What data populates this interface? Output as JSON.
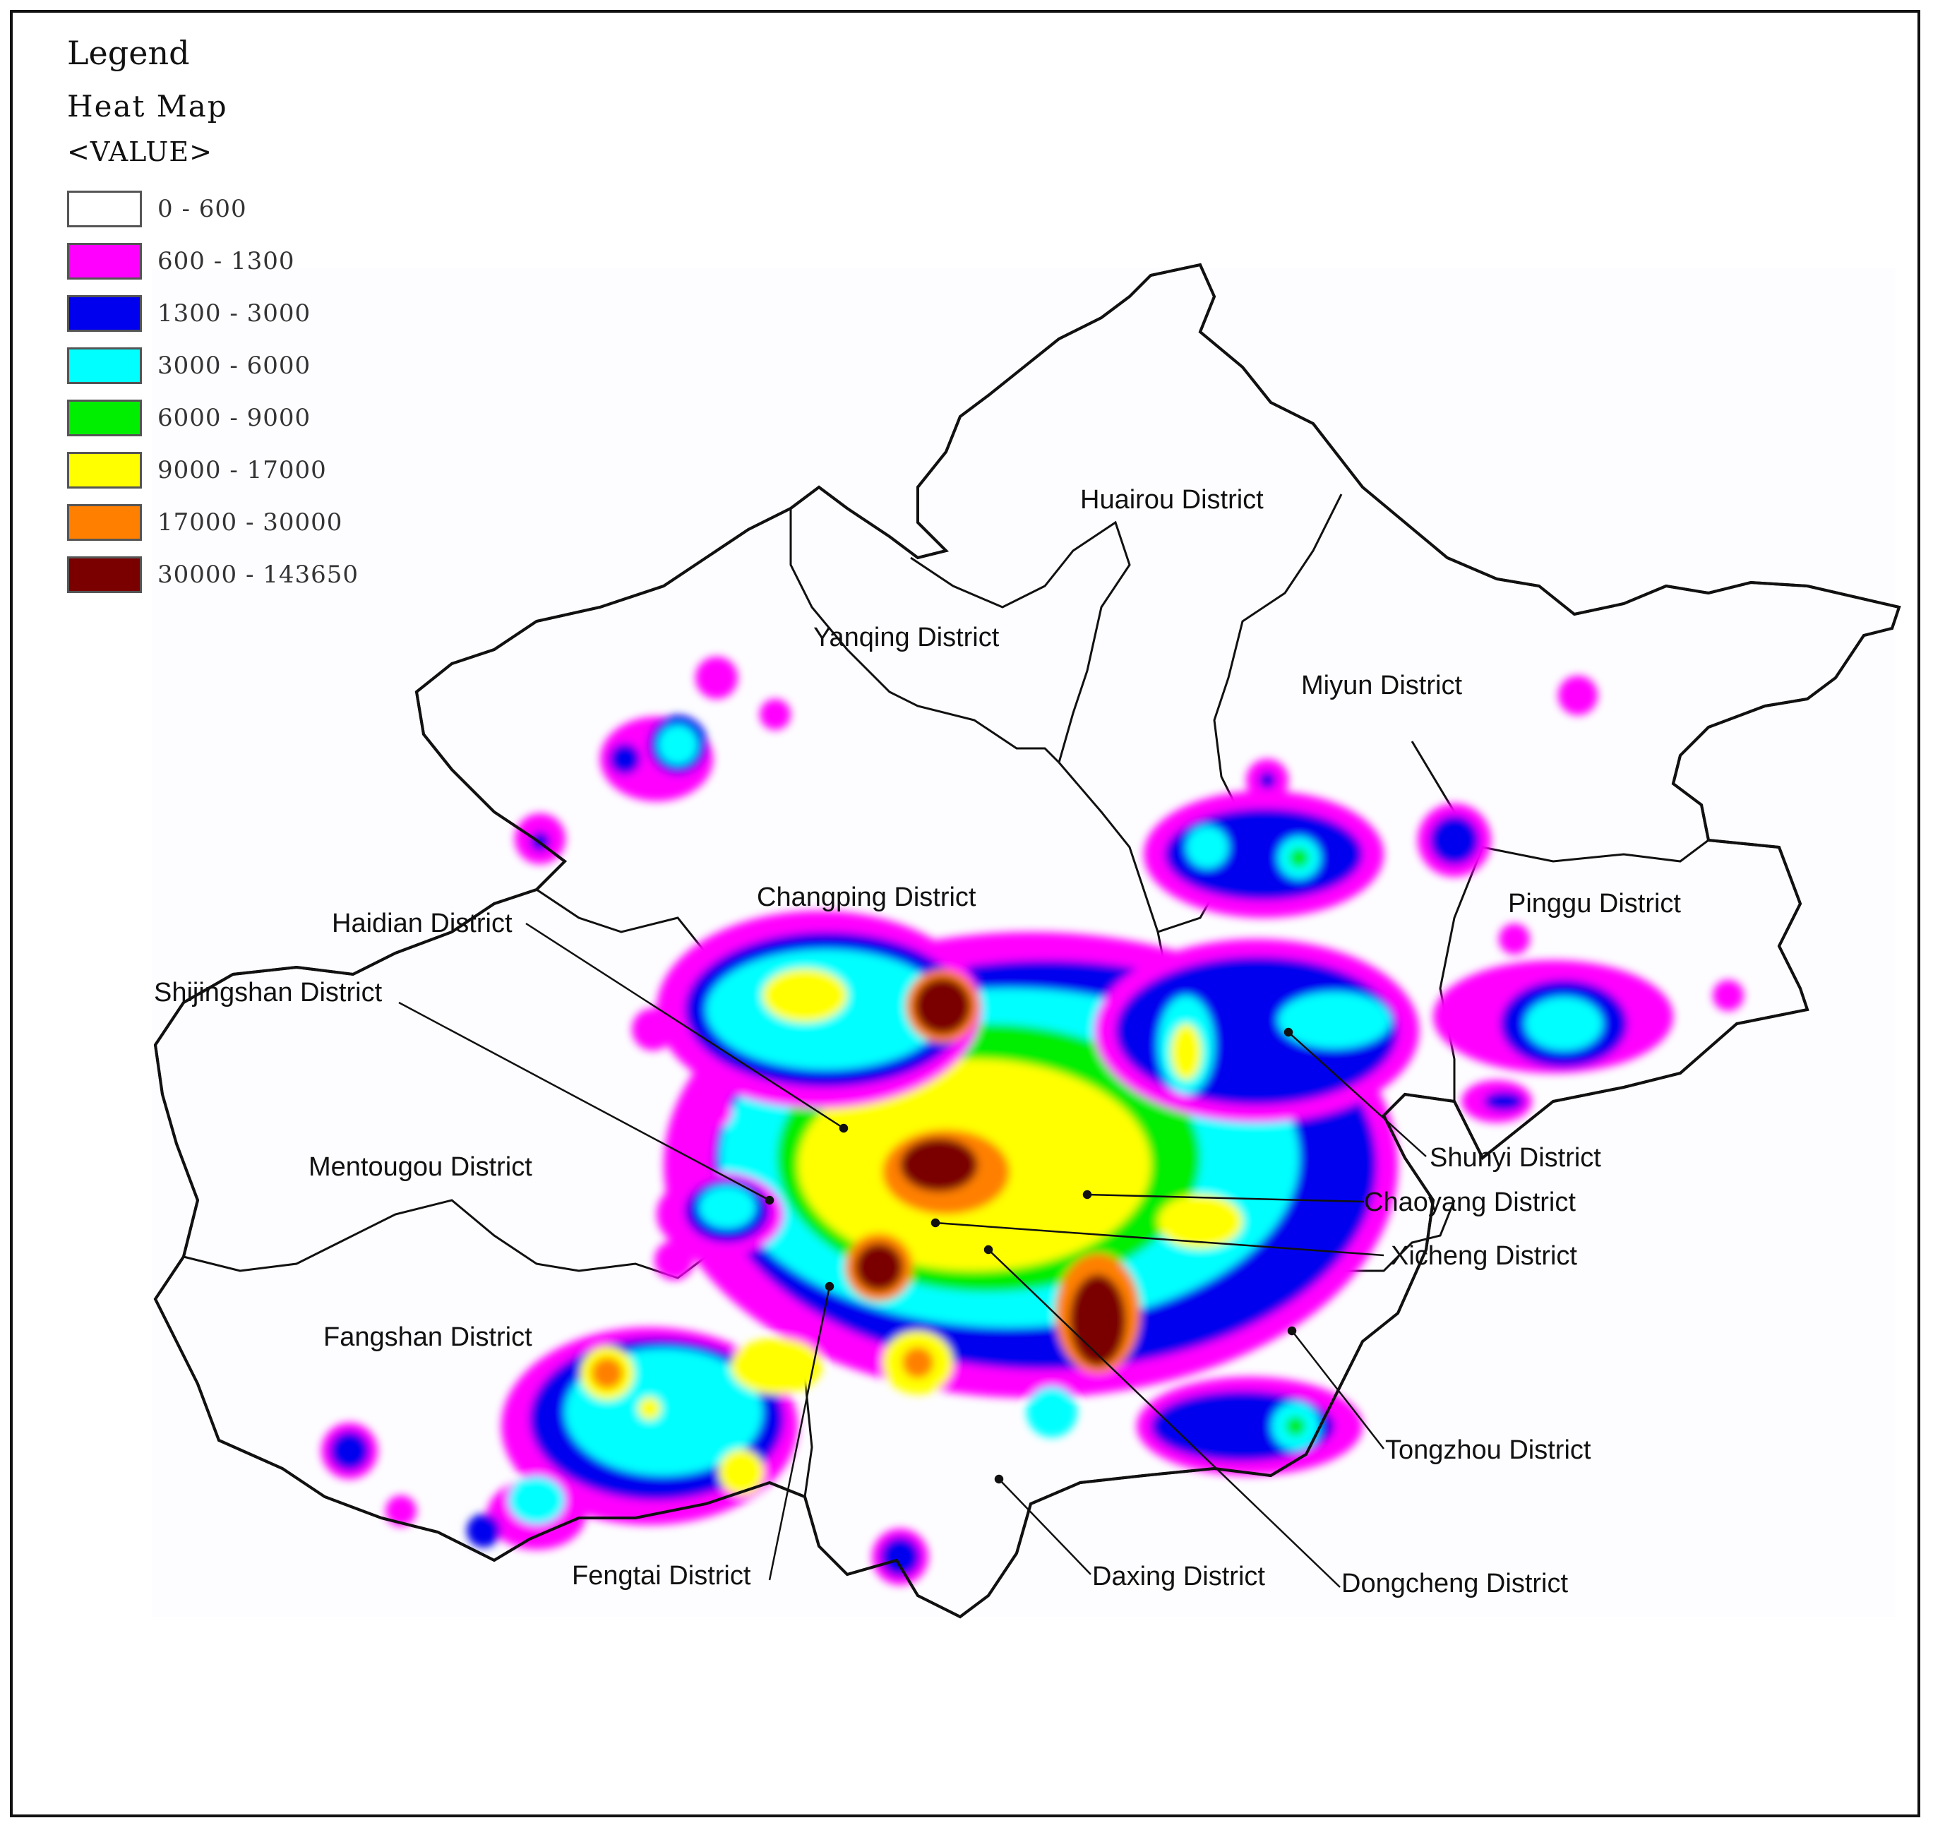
{
  "legend": {
    "title": "Legend",
    "subtitle": "Heat Map",
    "field": "<VALUE>",
    "classes": [
      {
        "label": "0 - 600",
        "color": "#ffffff"
      },
      {
        "label": "600 - 1300",
        "color": "#ff00ff"
      },
      {
        "label": "1300 - 3000",
        "color": "#0000ee"
      },
      {
        "label": "3000 - 6000",
        "color": "#00ffff"
      },
      {
        "label": "6000 - 9000",
        "color": "#00ee00"
      },
      {
        "label": "9000 - 17000",
        "color": "#ffff00"
      },
      {
        "label": "17000 - 30000",
        "color": "#ff8000"
      },
      {
        "label": "30000 - 143650",
        "color": "#7a0000"
      }
    ]
  },
  "districts": {
    "huairou": "Huairou District",
    "yanqing": "Yanqing District",
    "miyun": "Miyun District",
    "changping": "Changping District",
    "haidian": "Haidian District",
    "pinggu": "Pinggu District",
    "shijingshan": "Shijingshan District",
    "mentougou": "Mentougou District",
    "shunyi": "Shunyi District",
    "chaoyang": "Chaoyang District",
    "xicheng": "Xicheng District",
    "fangshan": "Fangshan District",
    "tongzhou": "Tongzhou District",
    "fengtai": "Fengtai District",
    "daxing": "Daxing District",
    "dongcheng": "Dongcheng District"
  }
}
